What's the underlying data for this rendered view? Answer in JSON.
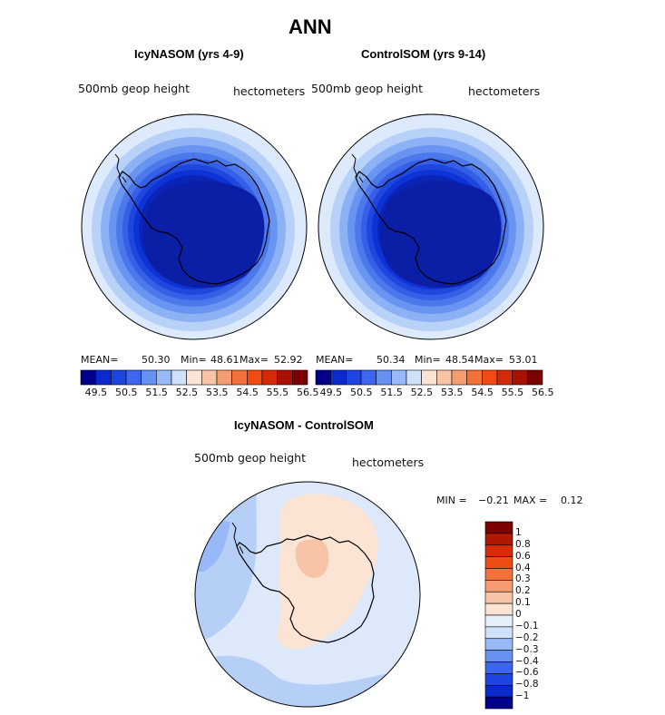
{
  "title": "ANN",
  "panels": [
    {
      "title": "IcyNASOM (yrs 4-9)",
      "variable": "500mb geop height",
      "units": "hectometers",
      "stats": {
        "mean_label": "MEAN=",
        "mean": "50.30",
        "min_label": "Min=",
        "min": "48.61",
        "max_label": "Max=",
        "max": "52.92"
      }
    },
    {
      "title": "ControlSOM (yrs 9-14)",
      "variable": "500mb geop height",
      "units": "hectometers",
      "stats": {
        "mean_label": "MEAN=",
        "mean": "50.34",
        "min_label": "Min=",
        "min": "48.54",
        "max_label": "Max=",
        "max": "53.01"
      }
    }
  ],
  "abs_colorbar": {
    "tick_labels": [
      "49.5",
      "50.5",
      "51.5",
      "52.5",
      "53.5",
      "54.5",
      "55.5",
      "56.5"
    ],
    "colors": [
      "#00008b",
      "#0a2acc",
      "#1f45e0",
      "#3d66ee",
      "#6690f2",
      "#99b8f8",
      "#cfe1fb",
      "#fbe4d3",
      "#f8c4a8",
      "#f59c72",
      "#f4713a",
      "#ee4c14",
      "#d42a06",
      "#a81200",
      "#7d0000"
    ]
  },
  "diff_panel": {
    "title": "IcyNASOM - ControlSOM",
    "variable": "500mb geop height",
    "units": "hectometers",
    "min_label": "MIN =",
    "min": "−0.21",
    "max_label": "MAX =",
    "max": "0.12"
  },
  "diff_colorbar": {
    "tick_labels": [
      "1",
      "0.8",
      "0.6",
      "0.4",
      "0.3",
      "0.2",
      "0.1",
      "0",
      "−0.1",
      "−0.2",
      "−0.3",
      "−0.4",
      "−0.6",
      "−0.8",
      "−1"
    ],
    "colors": [
      "#7d0000",
      "#b01800",
      "#d92c06",
      "#ee4c14",
      "#f4713a",
      "#f59c72",
      "#f8c4a8",
      "#fbe4d3",
      "#e6f0fb",
      "#cfe1fb",
      "#99b8f8",
      "#6690f2",
      "#3d66ee",
      "#1f45e0",
      "#0a2acc",
      "#00008b"
    ]
  },
  "colors": {
    "ring_outer": "#dceafb",
    "ring_1": "#b7d1f8",
    "ring_2": "#8db1f5",
    "ring_3": "#6a94f1",
    "ring_4": "#4d78ec",
    "ring_5": "#355fe6",
    "ring_6": "#1f47de",
    "ring_7": "#0d33d6",
    "core": "#0a24b8",
    "diff_light": "#dde9fb",
    "diff_mid": "#b6cff7",
    "diff_pos": "#fbe4d3",
    "diff_pos2": "#f8c4a8",
    "coast": "#000000"
  }
}
